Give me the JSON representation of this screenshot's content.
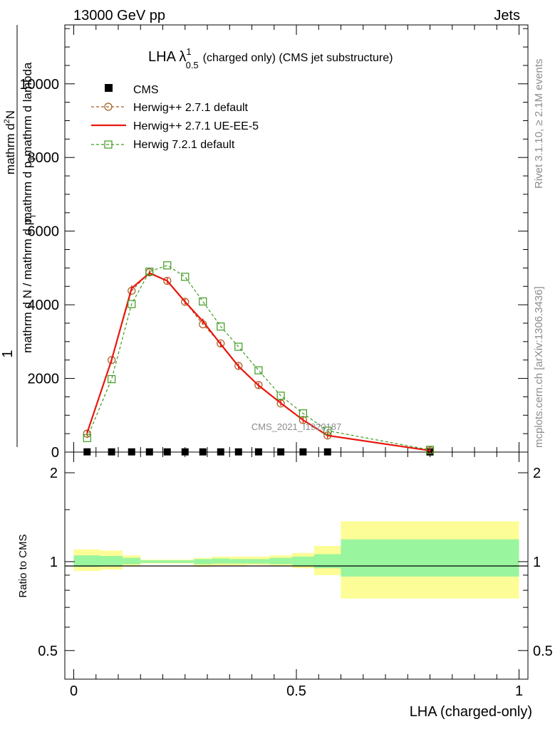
{
  "header": {
    "left": "13000 GeV pp",
    "right": "Jets"
  },
  "plot_title": {
    "main": "LHA λ",
    "sup": "1",
    "sub": "0.5",
    "tail": "(charged only) (CMS jet substructure)"
  },
  "side_labels": {
    "rivet": "Rivet 3.1.10, ≥ 2.1M events",
    "mcplots": "mcplots.cern.ch [arXiv:1306.3436]"
  },
  "watermark": "CMS_2021_I1920187",
  "ylabel_main": {
    "one": "1",
    "numerator": "mathrm d^{2}N",
    "denominator": "mathrm d p_{T} mathrm d lambda",
    "frac_num": "mathrm d N",
    "frac_den": "mathrm d p_{T}",
    "numerator_text": "mathrm d",
    "numerator_sup": "2",
    "numerator_tail": "N",
    "denominator_text": "mathrm d p",
    "denominator_sub": "T",
    "denominator_tail": "mathrm d lambda",
    "fracnum_text": "mathrm d N / mathrm d p",
    "fracnum_sub": "T"
  },
  "ylabel_ratio": "Ratio to CMS",
  "xlabel": "LHA (charged-only)",
  "legend": [
    {
      "name": "CMS",
      "color": "#000000",
      "style": "square-marker"
    },
    {
      "name": "Herwig++ 2.7.1 default",
      "color": "#a65a1b",
      "style": "dashed-circle"
    },
    {
      "name": "Herwig++ 2.7.1 UE-EE-5",
      "color": "#e8170d",
      "style": "solid"
    },
    {
      "name": "Herwig 7.2.1 default",
      "color": "#3d9a1e",
      "style": "dashed-square"
    }
  ],
  "chart_data": {
    "type": "line",
    "x_bins": [
      [
        0.0,
        0.06
      ],
      [
        0.06,
        0.11
      ],
      [
        0.11,
        0.15
      ],
      [
        0.15,
        0.19
      ],
      [
        0.19,
        0.23
      ],
      [
        0.23,
        0.27
      ],
      [
        0.27,
        0.31
      ],
      [
        0.31,
        0.35
      ],
      [
        0.35,
        0.39
      ],
      [
        0.39,
        0.44
      ],
      [
        0.44,
        0.49
      ],
      [
        0.49,
        0.54
      ],
      [
        0.54,
        0.6
      ],
      [
        0.6,
        1.0
      ]
    ],
    "x": [
      0.03,
      0.085,
      0.13,
      0.17,
      0.21,
      0.25,
      0.29,
      0.33,
      0.37,
      0.415,
      0.465,
      0.515,
      0.57,
      0.8
    ],
    "main_panel": {
      "xlim": [
        -0.02,
        1.02
      ],
      "ylim": [
        0,
        11600
      ],
      "yticks": [
        0,
        2000,
        4000,
        6000,
        8000,
        10000
      ],
      "ytick_labels": [
        "0",
        "2000",
        "4000",
        "6000",
        "8000",
        "10000"
      ]
    },
    "ratio_panel": {
      "ylim": [
        0.4,
        2.35
      ],
      "log_scale": true,
      "yticks": [
        0.5,
        1,
        2
      ],
      "ytick_labels": [
        "0.5",
        "1",
        "2"
      ]
    },
    "xticks": [
      0,
      0.5,
      1
    ],
    "xtick_labels": [
      "0",
      "0.5",
      "1"
    ],
    "series": [
      {
        "name": "CMS",
        "values": [
          6,
          5,
          5,
          5,
          5,
          5,
          5,
          5,
          5,
          5,
          5,
          5,
          5,
          4
        ]
      },
      {
        "name": "Herwig++ 2.7.1 default",
        "values": [
          500,
          2500,
          4380,
          4880,
          4650,
          4080,
          3470,
          2950,
          2340,
          1820,
          1320,
          870,
          450,
          50
        ]
      },
      {
        "name": "Herwig++ 2.7.1 UE-EE-5",
        "values": [
          520,
          2500,
          4450,
          4860,
          4650,
          4080,
          3550,
          2930,
          2330,
          1810,
          1330,
          870,
          450,
          40
        ]
      },
      {
        "name": "Herwig 7.2.1 default",
        "values": [
          380,
          1980,
          4020,
          4900,
          5070,
          4760,
          4090,
          3410,
          2860,
          2220,
          1530,
          1050,
          580,
          60
        ]
      }
    ],
    "ratio_bands": {
      "stat": [
        [
          0.96,
          1.05
        ],
        [
          0.965,
          1.045
        ],
        [
          0.98,
          1.03
        ],
        [
          0.99,
          1.01
        ],
        [
          0.99,
          1.01
        ],
        [
          0.99,
          1.01
        ],
        [
          0.98,
          1.02
        ],
        [
          0.985,
          1.025
        ],
        [
          0.985,
          1.02
        ],
        [
          0.985,
          1.02
        ],
        [
          0.98,
          1.03
        ],
        [
          0.97,
          1.04
        ],
        [
          0.95,
          1.06
        ],
        [
          0.89,
          1.19
        ]
      ],
      "total": [
        [
          0.93,
          1.1
        ],
        [
          0.94,
          1.09
        ],
        [
          0.97,
          1.05
        ],
        [
          0.985,
          1.015
        ],
        [
          0.985,
          1.015
        ],
        [
          0.985,
          1.015
        ],
        [
          0.96,
          1.03
        ],
        [
          0.97,
          1.04
        ],
        [
          0.97,
          1.04
        ],
        [
          0.975,
          1.04
        ],
        [
          0.97,
          1.05
        ],
        [
          0.95,
          1.07
        ],
        [
          0.9,
          1.13
        ],
        [
          0.75,
          1.37
        ]
      ]
    },
    "colors": {
      "stat_band": "#99f59e",
      "total_band": "#fcfd96"
    }
  }
}
